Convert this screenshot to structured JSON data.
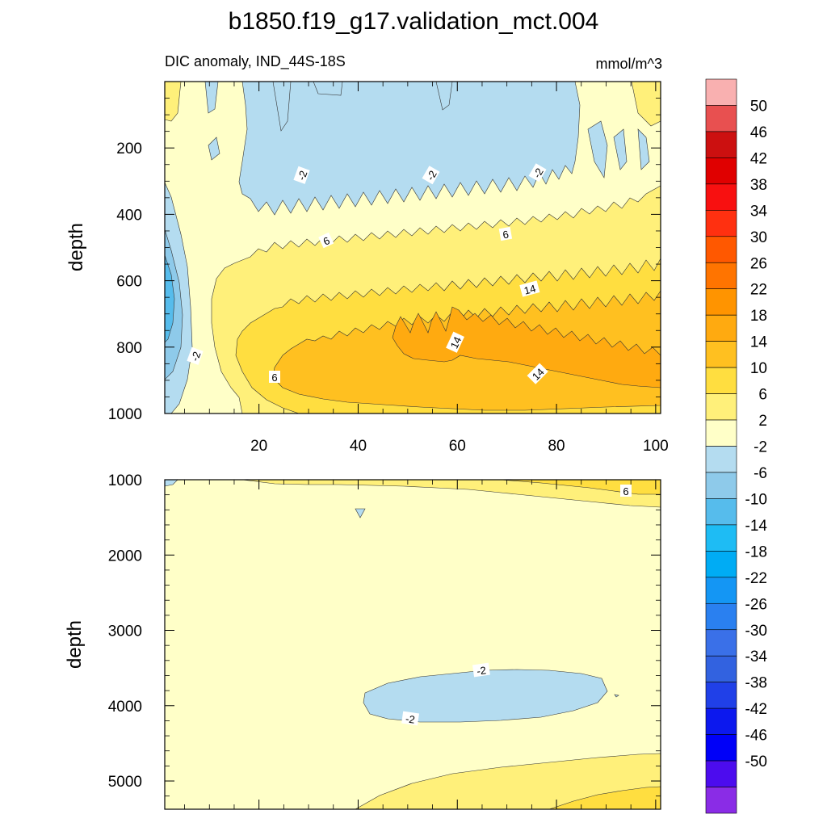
{
  "chart_data": {
    "type": "heatmap",
    "title": "b1850.f19_g17.validation_mct.004",
    "subtitle": "DIC anomaly, IND_44S-18S",
    "units": "mmol/m^3",
    "panels": [
      {
        "name": "upper",
        "ylabel": "depth",
        "ylim": [
          0,
          1000
        ],
        "xlim": [
          1,
          101
        ],
        "y_ticks": [
          "200",
          "400",
          "600",
          "800",
          "1000"
        ],
        "x_ticks": [
          "20",
          "40",
          "60",
          "80",
          "100"
        ],
        "contour_labels": [
          "-2",
          "-2",
          "-2",
          "6",
          "6",
          "14",
          "14",
          "14",
          "-2",
          "6"
        ]
      },
      {
        "name": "lower",
        "ylabel": "depth",
        "ylim": [
          1000,
          5375
        ],
        "xlim": [
          1,
          101
        ],
        "y_ticks": [
          "1000",
          "2000",
          "3000",
          "4000",
          "5000"
        ],
        "contour_labels": [
          "6",
          "-2",
          "-2"
        ]
      }
    ],
    "colorbar": {
      "labels": [
        "50",
        "46",
        "42",
        "38",
        "34",
        "30",
        "26",
        "22",
        "18",
        "14",
        "10",
        "6",
        "2",
        "-2",
        "-6",
        "-10",
        "-14",
        "-18",
        "-22",
        "-26",
        "-30",
        "-34",
        "-38",
        "-42",
        "-46",
        "-50"
      ],
      "colors": [
        "#f9b0b0",
        "#e85050",
        "#cc1010",
        "#e00000",
        "#f81010",
        "#ff3010",
        "#ff5800",
        "#ff7400",
        "#ff9400",
        "#ffaa10",
        "#ffc020",
        "#ffde40",
        "#fff07a",
        "#ffffc8",
        "#b4dcf0",
        "#8ecaea",
        "#56bcec",
        "#1ebcf4",
        "#00acf4",
        "#1496f4",
        "#2a80f0",
        "#3a70e8",
        "#3262e0",
        "#2040e8",
        "#0c18ee",
        "#0000f8",
        "#4c0cee",
        "#8a2ce6"
      ]
    }
  }
}
